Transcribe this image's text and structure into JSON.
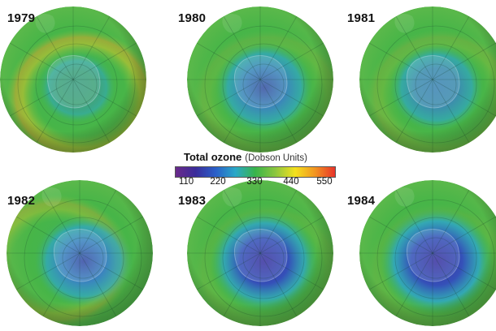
{
  "panels": [
    {
      "year": "1979",
      "hole": 0.0,
      "ring": 0.55
    },
    {
      "year": "1980",
      "hole": 0.55,
      "ring": 0.15
    },
    {
      "year": "1981",
      "hole": 0.45,
      "ring": 0.2
    },
    {
      "year": "1982",
      "hole": 0.6,
      "ring": 0.35
    },
    {
      "year": "1983",
      "hole": 0.85,
      "ring": 0.1
    },
    {
      "year": "1984",
      "hole": 1.0,
      "ring": 0.1
    }
  ],
  "legend": {
    "title": "Total ozone",
    "units": "(Dobson Units)",
    "ticks": [
      "110",
      "220",
      "330",
      "440",
      "550"
    ],
    "colors": [
      "#6a2a8a",
      "#3a2c9a",
      "#2a5fc9",
      "#2aa8c8",
      "#39b44a",
      "#8cc63f",
      "#f4e11e",
      "#f29421",
      "#e8332a"
    ]
  }
}
